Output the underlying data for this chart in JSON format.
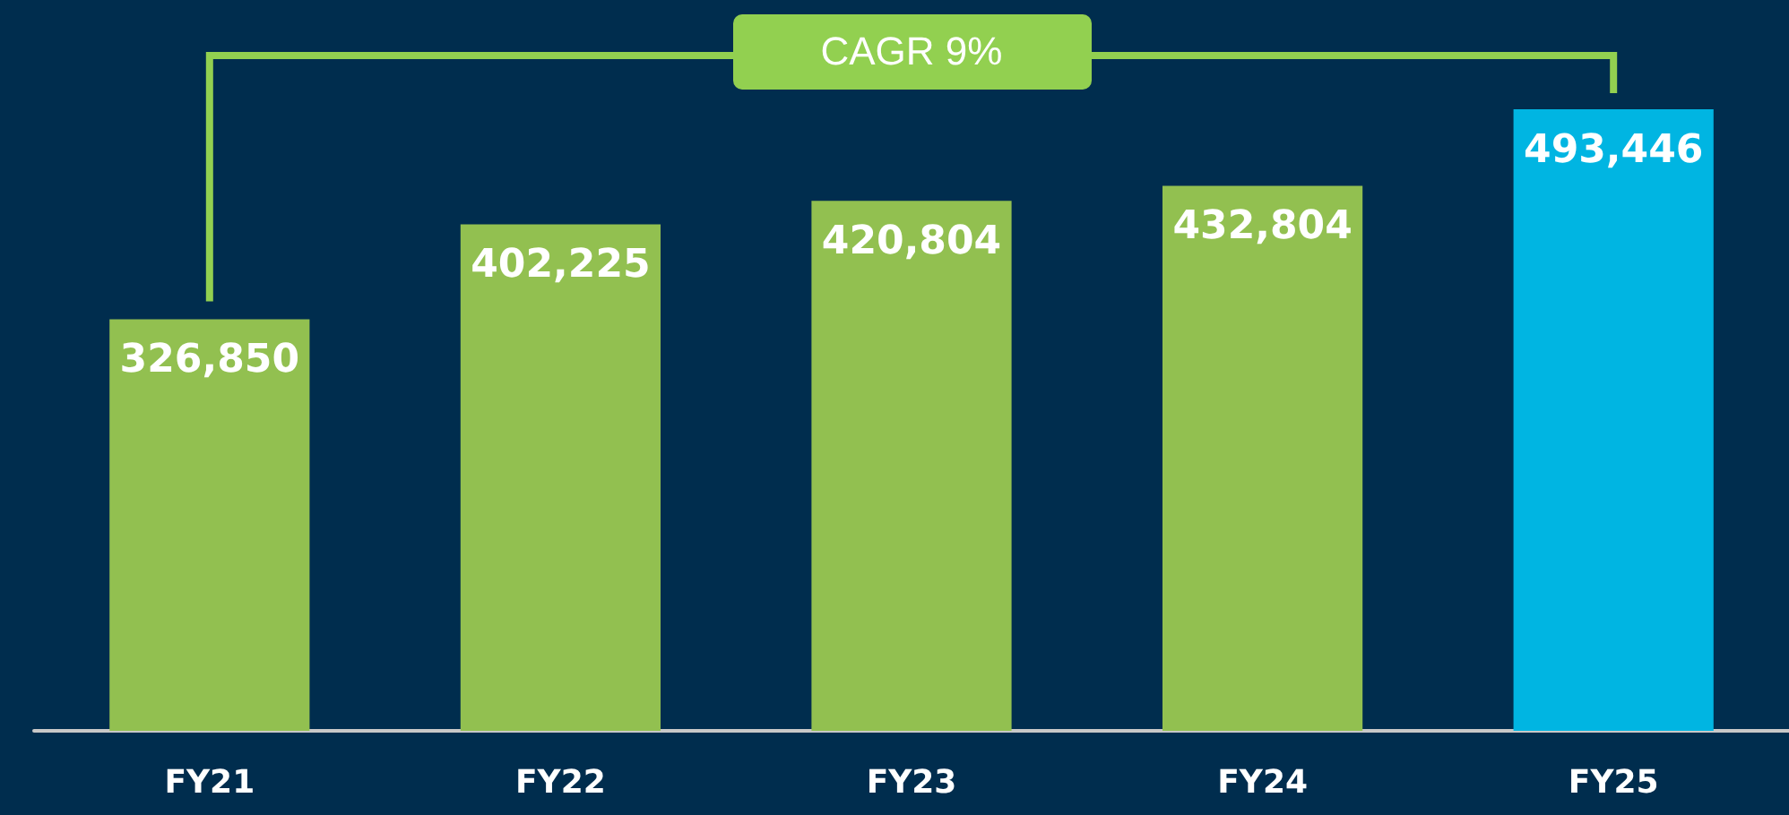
{
  "chart_data": {
    "type": "bar",
    "categories": [
      "FY21",
      "FY22",
      "FY23",
      "FY24",
      "FY25"
    ],
    "values": [
      326850,
      402225,
      420804,
      432804,
      493446
    ],
    "value_labels": [
      "326,850",
      "402,225",
      "420,804",
      "432,804",
      "493,446"
    ],
    "colors": [
      "#92c050",
      "#92c050",
      "#92c050",
      "#92c050",
      "#00b5e2"
    ],
    "annotations": [
      "CAGR 9%"
    ]
  }
}
